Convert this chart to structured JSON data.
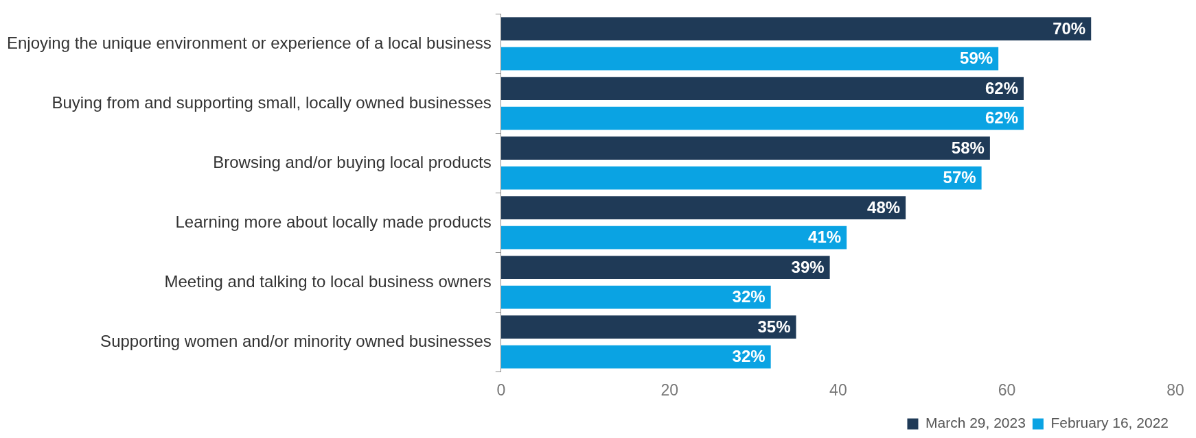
{
  "chart_data": {
    "type": "bar",
    "orientation": "horizontal",
    "categories": [
      "Enjoying the unique environment or experience of a local business",
      "Buying from and supporting small, locally owned businesses",
      "Browsing and/or buying local products",
      "Learning more about locally made products",
      "Meeting and talking to local business owners",
      "Supporting women and/or minority owned businesses"
    ],
    "series": [
      {
        "name": "March 29, 2023",
        "color": "#1f3a57",
        "values": [
          70,
          62,
          58,
          48,
          39,
          35
        ],
        "value_labels": [
          "70%",
          "62%",
          "58%",
          "48%",
          "39%",
          "35%"
        ]
      },
      {
        "name": "February 16, 2022",
        "color": "#0aa3e3",
        "values": [
          59,
          62,
          57,
          41,
          32,
          32
        ],
        "value_labels": [
          "59%",
          "62%",
          "57%",
          "41%",
          "32%",
          "32%"
        ]
      }
    ],
    "xlim": [
      0,
      80
    ],
    "xticks": [
      0,
      20,
      40,
      60,
      80
    ],
    "grid": false,
    "legend": "bottom right"
  }
}
